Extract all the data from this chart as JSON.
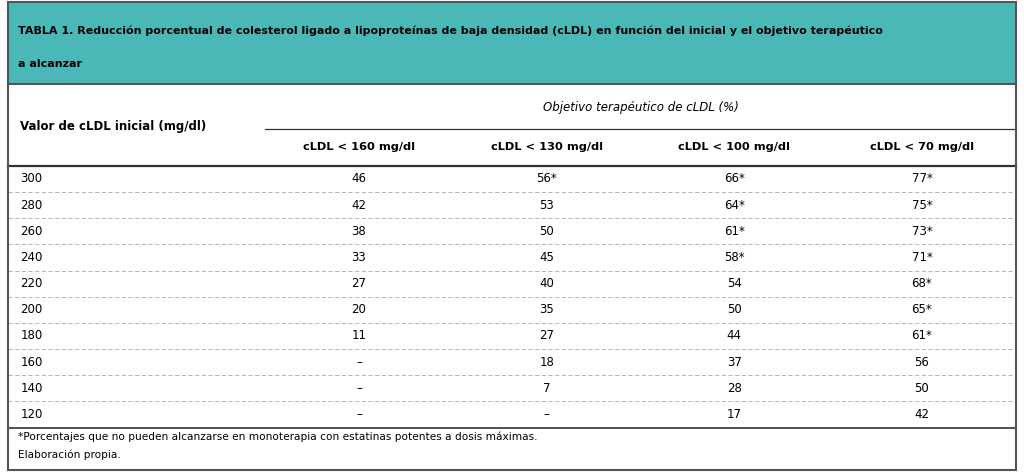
{
  "title_line1": "TABLA 1. Reducción porcentual de colesterol ligado a lipoproteínas de baja densidad (cLDL) en función del inicial y el objetivo terapéutico",
  "title_line2": "a alcanzar",
  "header_bg": "#4BB8B8",
  "subheader": "Objetivo terapéutico de cLDL (%)",
  "col0_header": "Valor de cLDL inicial (mg/dl)",
  "col_headers": [
    "cLDL < 160 mg/dl",
    "cLDL < 130 mg/dl",
    "cLDL < 100 mg/dl",
    "cLDL < 70 mg/dl"
  ],
  "row_labels": [
    "300",
    "280",
    "260",
    "240",
    "220",
    "200",
    "180",
    "160",
    "140",
    "120"
  ],
  "table_data": [
    [
      "46",
      "56*",
      "66*",
      "77*"
    ],
    [
      "42",
      "53",
      "64*",
      "75*"
    ],
    [
      "38",
      "50",
      "61*",
      "73*"
    ],
    [
      "33",
      "45",
      "58*",
      "71*"
    ],
    [
      "27",
      "40",
      "54",
      "68*"
    ],
    [
      "20",
      "35",
      "50",
      "65*"
    ],
    [
      "11",
      "27",
      "44",
      "61*"
    ],
    [
      "–",
      "18",
      "37",
      "56"
    ],
    [
      "–",
      "7",
      "28",
      "50"
    ],
    [
      "–",
      "–",
      "17",
      "42"
    ]
  ],
  "footnote1": "*Porcentajes que no pueden alcanzarse en monoterapia con estatinas potentes a dosis máximas.",
  "footnote2": "Elaboración propia.",
  "bg_color": "#FFFFFF",
  "border_color": "#555555",
  "row_sep_color": "#AAAAAA",
  "outer_border": "#888888"
}
